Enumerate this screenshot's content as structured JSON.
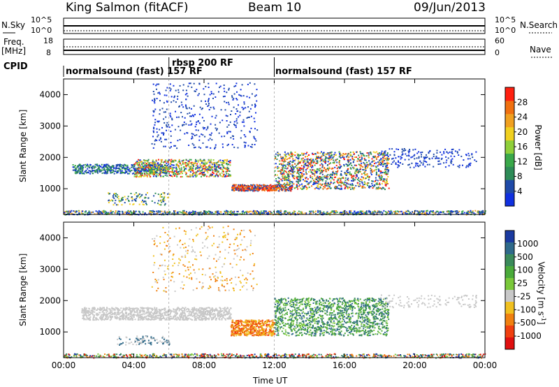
{
  "header": {
    "station": "King Salmon (fitACF)",
    "beam": "Beam 10",
    "date": "09/Jun/2013"
  },
  "strips": {
    "nsky_label": "N.Sky",
    "nsky_ticks": [
      "10^5",
      "10^0"
    ],
    "nsearch_label": "N.Search",
    "nsearch_ticks": [
      "10^5",
      "10^0"
    ],
    "freq_label": "Freq.",
    "freq_unit": "[MHz]",
    "freq_ticks": [
      "18",
      "8"
    ],
    "nave_label": "Nave",
    "nave_ticks": [
      "60",
      "0"
    ],
    "cpid_label": "CPID"
  },
  "cpid_segments": [
    {
      "label": "normalsound (fast) 157 RF",
      "start_hour": 0.0,
      "end_hour": 6.0
    },
    {
      "label": "rbsp 200 RF",
      "start_hour": 6.0,
      "end_hour": 12.0
    },
    {
      "label": "normalsound (fast) 157 RF",
      "start_hour": 12.0,
      "end_hour": 24.0
    }
  ],
  "chart_data": [
    {
      "type": "heatmap",
      "panel": "power",
      "ylabel": "Slant Range [km]",
      "ylim": [
        180,
        4500
      ],
      "yticks": [
        1000,
        2000,
        3000,
        4000
      ],
      "xlim": [
        0,
        24
      ],
      "colorbar": {
        "label": "Power [dB]",
        "ticks": [
          "4",
          "8",
          "12",
          "16",
          "20",
          "24",
          "28"
        ],
        "colors": [
          "#1030e0",
          "#1f4aa8",
          "#2e8b57",
          "#3aa84a",
          "#8fcf3a",
          "#f0d020",
          "#f0a020",
          "#f07010",
          "#ff2010"
        ]
      }
    },
    {
      "type": "heatmap",
      "panel": "velocity",
      "ylabel": "Slant Range [km]",
      "ylim": [
        180,
        4500
      ],
      "yticks": [
        1000,
        2000,
        3000,
        4000
      ],
      "xlim": [
        0,
        24
      ],
      "xlabel": "Time UT",
      "xticks": [
        "00:00",
        "04:00",
        "08:00",
        "12:00",
        "16:00",
        "20:00",
        "00:00"
      ],
      "colorbar": {
        "label": "Velocity [m s",
        "label_sup": "-1",
        "label_end": "]",
        "ticks": [
          "1000",
          "500",
          "100",
          "25",
          "-25",
          "-100",
          "-500",
          "-1000"
        ],
        "colors": [
          "#1a3aa0",
          "#2f6a8a",
          "#3a8a5a",
          "#4aaa3a",
          "#7ac83a",
          "#c8c8c8",
          "#f0c020",
          "#f08010",
          "#f04010",
          "#e01010"
        ]
      }
    }
  ]
}
